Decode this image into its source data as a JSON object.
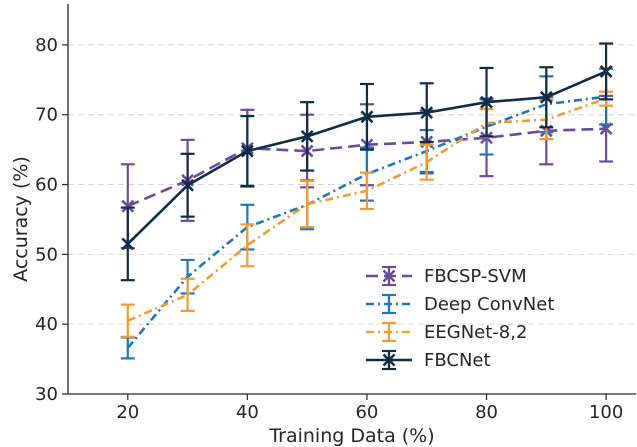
{
  "chart_data": {
    "type": "line",
    "xlabel": "Training Data (%)",
    "ylabel": "Accuracy (%)",
    "xlim": [
      10,
      105
    ],
    "ylim": [
      30,
      85
    ],
    "xticks": [
      20,
      40,
      60,
      80,
      100
    ],
    "yticks": [
      30,
      40,
      50,
      60,
      70,
      80
    ],
    "grid": "horizontal dashed",
    "legend_position": "bottom-right",
    "x": [
      20,
      30,
      40,
      50,
      60,
      70,
      80,
      90,
      100
    ],
    "series": [
      {
        "name": "FBCSP-SVM",
        "color": "#6b4c9a",
        "linestyle": "dashed",
        "marker": "x",
        "values": [
          56.9,
          60.6,
          65.2,
          64.8,
          65.7,
          66.1,
          66.7,
          67.7,
          68.0
        ],
        "errors": [
          6.0,
          5.8,
          5.5,
          5.2,
          5.8,
          4.5,
          5.5,
          4.8,
          4.7
        ]
      },
      {
        "name": "Deep ConvNet",
        "color": "#1f77b4",
        "linestyle": "dashdot",
        "marker": "none",
        "values": [
          36.6,
          46.8,
          53.9,
          57.1,
          61.5,
          64.8,
          68.3,
          71.5,
          72.6
        ],
        "errors": [
          1.5,
          2.4,
          3.2,
          3.5,
          3.8,
          3.0,
          4.0,
          4.0,
          4.0
        ]
      },
      {
        "name": "EEGNet-8,2",
        "color": "#f39a32",
        "linestyle": "dashdot",
        "marker": "none",
        "values": [
          40.5,
          44.2,
          51.3,
          57.2,
          59.1,
          63.2,
          68.8,
          69.3,
          72.3
        ],
        "errors": [
          2.3,
          2.3,
          3.0,
          3.3,
          2.6,
          2.5,
          2.0,
          2.8,
          1.0
        ]
      },
      {
        "name": "FBCNet",
        "color": "#0e2c44",
        "linestyle": "solid",
        "marker": "x",
        "values": [
          51.5,
          59.9,
          64.8,
          66.9,
          69.7,
          70.3,
          71.8,
          72.5,
          76.2
        ],
        "errors": [
          5.2,
          4.5,
          5.0,
          4.9,
          4.7,
          4.2,
          4.9,
          4.3,
          4.0
        ]
      }
    ]
  }
}
